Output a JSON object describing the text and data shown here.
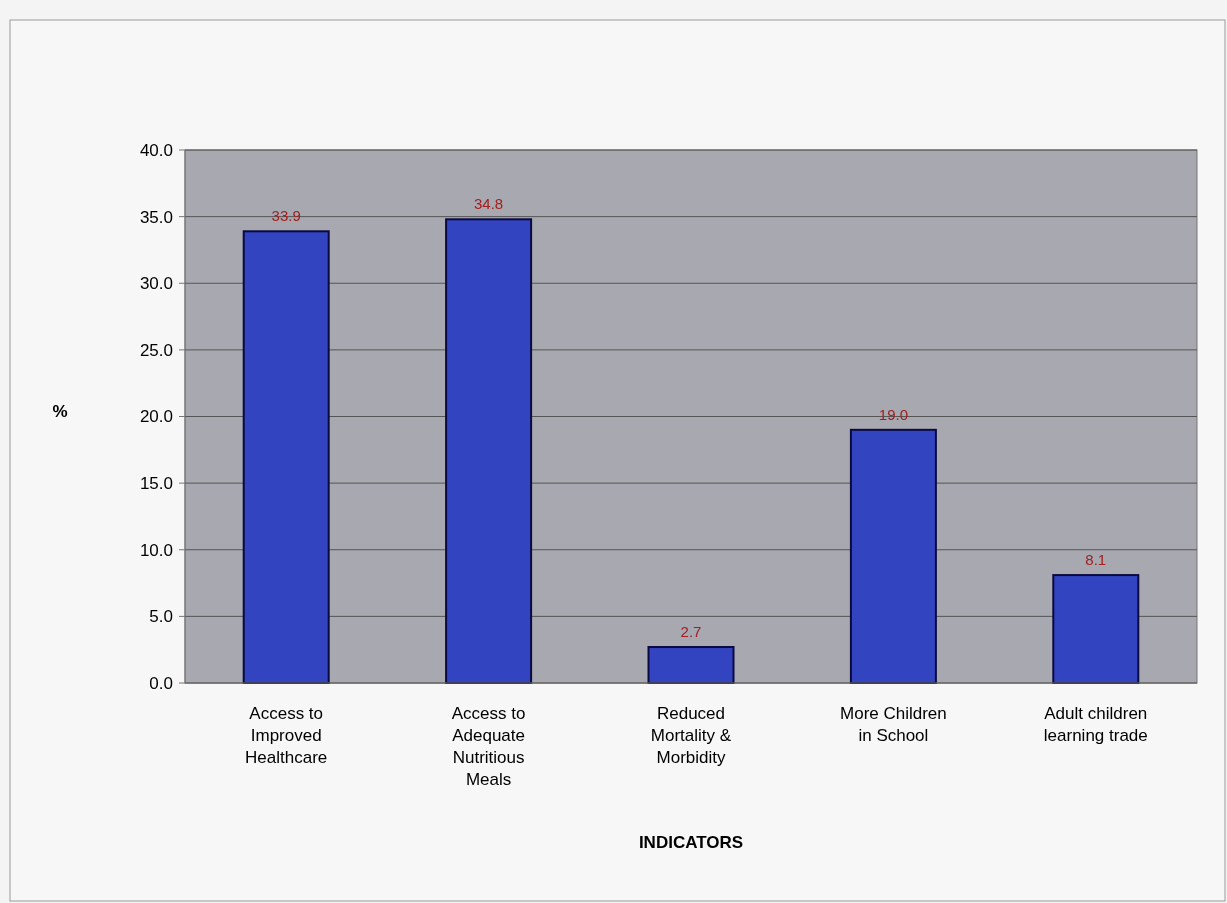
{
  "chart_data": {
    "type": "bar",
    "xlabel": "INDICATORS",
    "ylabel": "%",
    "categories": [
      "Access to Improved Healthcare",
      "Access to Adequate Nutritious Meals",
      "Reduced Mortality & Morbidity",
      "More Children in School",
      "Adult children learning trade"
    ],
    "values": [
      33.9,
      34.8,
      2.7,
      19.0,
      8.1
    ],
    "color": "#3344c0",
    "ylim": [
      0,
      40
    ],
    "yticks": [
      {
        "value": 0,
        "label": "0.0"
      },
      {
        "value": 5,
        "label": "5.0"
      },
      {
        "value": 10,
        "label": "10.0"
      },
      {
        "value": 15,
        "label": "15.0"
      },
      {
        "value": 20,
        "label": "20.0"
      },
      {
        "value": 25,
        "label": "25.0"
      },
      {
        "value": 30,
        "label": "30.0"
      },
      {
        "value": 35,
        "label": "35.0"
      },
      {
        "value": 40,
        "label": "40.0"
      }
    ],
    "value_labels": [
      "33.9",
      "34.8",
      "2.7",
      "19.0",
      "8.1"
    ],
    "grid": "y"
  }
}
